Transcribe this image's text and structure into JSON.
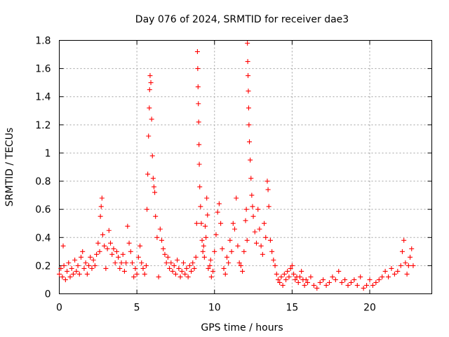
{
  "chart_data": {
    "type": "scatter",
    "title": "Day 076 of 2024, SRMTID for receiver dae3",
    "xlabel": "GPS time / hours",
    "ylabel": "SRMTID / TECUs",
    "xlim": [
      0,
      24
    ],
    "ylim": [
      0,
      1.8
    ],
    "xticks": [
      0,
      5,
      10,
      15,
      20
    ],
    "xtick_labels": [
      "0",
      "5",
      "10",
      "15",
      "20"
    ],
    "yticks": [
      0,
      0.2,
      0.4,
      0.6,
      0.8,
      1,
      1.2,
      1.4,
      1.6,
      1.8
    ],
    "ytick_labels": [
      "0",
      "0.2",
      "0.4",
      "0.6",
      "0.8",
      "1",
      "1.2",
      "1.4",
      "1.6",
      "1.8"
    ],
    "grid": true,
    "marker": "+",
    "color": "#ff0000",
    "series": [
      {
        "name": "dae3",
        "points": [
          [
            0.0,
            0.14
          ],
          [
            0.1,
            0.18
          ],
          [
            0.2,
            0.12
          ],
          [
            0.25,
            0.34
          ],
          [
            0.3,
            0.2
          ],
          [
            0.4,
            0.1
          ],
          [
            0.5,
            0.16
          ],
          [
            0.6,
            0.22
          ],
          [
            0.7,
            0.12
          ],
          [
            0.8,
            0.18
          ],
          [
            0.9,
            0.14
          ],
          [
            1.0,
            0.24
          ],
          [
            1.1,
            0.16
          ],
          [
            1.2,
            0.2
          ],
          [
            1.3,
            0.14
          ],
          [
            1.4,
            0.26
          ],
          [
            1.5,
            0.3
          ],
          [
            1.6,
            0.18
          ],
          [
            1.7,
            0.22
          ],
          [
            1.8,
            0.14
          ],
          [
            1.9,
            0.2
          ],
          [
            2.0,
            0.26
          ],
          [
            2.1,
            0.18
          ],
          [
            2.2,
            0.24
          ],
          [
            2.3,
            0.2
          ],
          [
            2.4,
            0.28
          ],
          [
            2.5,
            0.36
          ],
          [
            2.6,
            0.3
          ],
          [
            2.65,
            0.55
          ],
          [
            2.7,
            0.62
          ],
          [
            2.75,
            0.68
          ],
          [
            2.8,
            0.42
          ],
          [
            2.9,
            0.34
          ],
          [
            3.0,
            0.18
          ],
          [
            3.1,
            0.32
          ],
          [
            3.2,
            0.45
          ],
          [
            3.3,
            0.36
          ],
          [
            3.4,
            0.28
          ],
          [
            3.5,
            0.32
          ],
          [
            3.6,
            0.22
          ],
          [
            3.7,
            0.3
          ],
          [
            3.8,
            0.26
          ],
          [
            3.9,
            0.18
          ],
          [
            4.0,
            0.22
          ],
          [
            4.1,
            0.28
          ],
          [
            4.2,
            0.16
          ],
          [
            4.3,
            0.22
          ],
          [
            4.4,
            0.48
          ],
          [
            4.5,
            0.36
          ],
          [
            4.6,
            0.3
          ],
          [
            4.7,
            0.22
          ],
          [
            4.8,
            0.12
          ],
          [
            4.9,
            0.18
          ],
          [
            5.0,
            0.14
          ],
          [
            5.1,
            0.26
          ],
          [
            5.2,
            0.34
          ],
          [
            5.3,
            0.22
          ],
          [
            5.4,
            0.18
          ],
          [
            5.5,
            0.14
          ],
          [
            5.6,
            0.2
          ],
          [
            5.65,
            0.6
          ],
          [
            5.7,
            0.85
          ],
          [
            5.75,
            1.12
          ],
          [
            5.8,
            1.32
          ],
          [
            5.82,
            1.45
          ],
          [
            5.85,
            1.55
          ],
          [
            5.9,
            1.5
          ],
          [
            5.95,
            1.24
          ],
          [
            6.0,
            0.98
          ],
          [
            6.05,
            0.82
          ],
          [
            6.1,
            0.76
          ],
          [
            6.15,
            0.72
          ],
          [
            6.2,
            0.55
          ],
          [
            6.3,
            0.4
          ],
          [
            6.4,
            0.12
          ],
          [
            6.5,
            0.46
          ],
          [
            6.6,
            0.38
          ],
          [
            6.7,
            0.32
          ],
          [
            6.8,
            0.28
          ],
          [
            6.9,
            0.22
          ],
          [
            7.0,
            0.26
          ],
          [
            7.1,
            0.18
          ],
          [
            7.2,
            0.22
          ],
          [
            7.3,
            0.16
          ],
          [
            7.4,
            0.2
          ],
          [
            7.5,
            0.14
          ],
          [
            7.6,
            0.24
          ],
          [
            7.7,
            0.18
          ],
          [
            7.8,
            0.12
          ],
          [
            7.9,
            0.16
          ],
          [
            8.0,
            0.22
          ],
          [
            8.1,
            0.14
          ],
          [
            8.2,
            0.18
          ],
          [
            8.3,
            0.12
          ],
          [
            8.4,
            0.2
          ],
          [
            8.5,
            0.16
          ],
          [
            8.6,
            0.22
          ],
          [
            8.7,
            0.18
          ],
          [
            8.8,
            0.26
          ],
          [
            8.85,
            0.5
          ],
          [
            8.9,
            1.72
          ],
          [
            8.92,
            1.6
          ],
          [
            8.94,
            1.47
          ],
          [
            8.96,
            1.35
          ],
          [
            8.98,
            1.22
          ],
          [
            9.0,
            1.06
          ],
          [
            9.02,
            0.92
          ],
          [
            9.05,
            0.76
          ],
          [
            9.1,
            0.62
          ],
          [
            9.15,
            0.5
          ],
          [
            9.2,
            0.38
          ],
          [
            9.25,
            0.3
          ],
          [
            9.3,
            0.34
          ],
          [
            9.35,
            0.26
          ],
          [
            9.4,
            0.48
          ],
          [
            9.45,
            0.4
          ],
          [
            9.5,
            0.68
          ],
          [
            9.55,
            0.56
          ],
          [
            9.6,
            0.18
          ],
          [
            9.7,
            0.2
          ],
          [
            9.75,
            0.24
          ],
          [
            9.8,
            0.12
          ],
          [
            9.9,
            0.16
          ],
          [
            10.0,
            0.3
          ],
          [
            10.1,
            0.42
          ],
          [
            10.2,
            0.58
          ],
          [
            10.3,
            0.64
          ],
          [
            10.4,
            0.5
          ],
          [
            10.5,
            0.32
          ],
          [
            10.6,
            0.18
          ],
          [
            10.7,
            0.14
          ],
          [
            10.8,
            0.26
          ],
          [
            10.9,
            0.22
          ],
          [
            11.0,
            0.38
          ],
          [
            11.1,
            0.3
          ],
          [
            11.2,
            0.5
          ],
          [
            11.3,
            0.46
          ],
          [
            11.4,
            0.68
          ],
          [
            11.5,
            0.34
          ],
          [
            11.6,
            0.22
          ],
          [
            11.7,
            0.2
          ],
          [
            11.8,
            0.16
          ],
          [
            11.9,
            0.3
          ],
          [
            12.0,
            0.52
          ],
          [
            12.05,
            0.6
          ],
          [
            12.1,
            0.38
          ],
          [
            12.12,
            1.78
          ],
          [
            12.14,
            1.65
          ],
          [
            12.16,
            1.55
          ],
          [
            12.18,
            1.44
          ],
          [
            12.2,
            1.32
          ],
          [
            12.22,
            1.2
          ],
          [
            12.25,
            1.08
          ],
          [
            12.3,
            0.95
          ],
          [
            12.35,
            0.82
          ],
          [
            12.4,
            0.7
          ],
          [
            12.45,
            0.62
          ],
          [
            12.5,
            0.55
          ],
          [
            12.6,
            0.44
          ],
          [
            12.7,
            0.36
          ],
          [
            12.8,
            0.6
          ],
          [
            12.9,
            0.46
          ],
          [
            13.0,
            0.34
          ],
          [
            13.1,
            0.28
          ],
          [
            13.2,
            0.5
          ],
          [
            13.3,
            0.4
          ],
          [
            13.4,
            0.8
          ],
          [
            13.45,
            0.74
          ],
          [
            13.5,
            0.62
          ],
          [
            13.6,
            0.38
          ],
          [
            13.7,
            0.3
          ],
          [
            13.8,
            0.24
          ],
          [
            13.9,
            0.2
          ],
          [
            14.0,
            0.14
          ],
          [
            14.1,
            0.1
          ],
          [
            14.2,
            0.08
          ],
          [
            14.3,
            0.12
          ],
          [
            14.4,
            0.06
          ],
          [
            14.5,
            0.14
          ],
          [
            14.6,
            0.1
          ],
          [
            14.7,
            0.16
          ],
          [
            14.8,
            0.12
          ],
          [
            14.9,
            0.18
          ],
          [
            15.0,
            0.2
          ],
          [
            15.1,
            0.14
          ],
          [
            15.2,
            0.1
          ],
          [
            15.3,
            0.12
          ],
          [
            15.4,
            0.08
          ],
          [
            15.5,
            0.12
          ],
          [
            15.6,
            0.16
          ],
          [
            15.7,
            0.1
          ],
          [
            15.8,
            0.06
          ],
          [
            15.9,
            0.1
          ],
          [
            16.0,
            0.08
          ],
          [
            16.2,
            0.12
          ],
          [
            16.4,
            0.06
          ],
          [
            16.6,
            0.04
          ],
          [
            16.8,
            0.08
          ],
          [
            17.0,
            0.1
          ],
          [
            17.2,
            0.06
          ],
          [
            17.4,
            0.08
          ],
          [
            17.6,
            0.12
          ],
          [
            17.8,
            0.1
          ],
          [
            18.0,
            0.16
          ],
          [
            18.2,
            0.08
          ],
          [
            18.4,
            0.1
          ],
          [
            18.6,
            0.06
          ],
          [
            18.8,
            0.08
          ],
          [
            19.0,
            0.1
          ],
          [
            19.2,
            0.06
          ],
          [
            19.4,
            0.12
          ],
          [
            19.6,
            0.04
          ],
          [
            19.8,
            0.06
          ],
          [
            20.0,
            0.1
          ],
          [
            20.2,
            0.06
          ],
          [
            20.4,
            0.08
          ],
          [
            20.6,
            0.1
          ],
          [
            20.8,
            0.12
          ],
          [
            21.0,
            0.16
          ],
          [
            21.2,
            0.12
          ],
          [
            21.4,
            0.18
          ],
          [
            21.6,
            0.14
          ],
          [
            21.8,
            0.16
          ],
          [
            22.0,
            0.2
          ],
          [
            22.1,
            0.3
          ],
          [
            22.2,
            0.38
          ],
          [
            22.3,
            0.22
          ],
          [
            22.4,
            0.14
          ],
          [
            22.5,
            0.2
          ],
          [
            22.6,
            0.26
          ],
          [
            22.7,
            0.32
          ],
          [
            22.8,
            0.2
          ]
        ]
      }
    ]
  }
}
